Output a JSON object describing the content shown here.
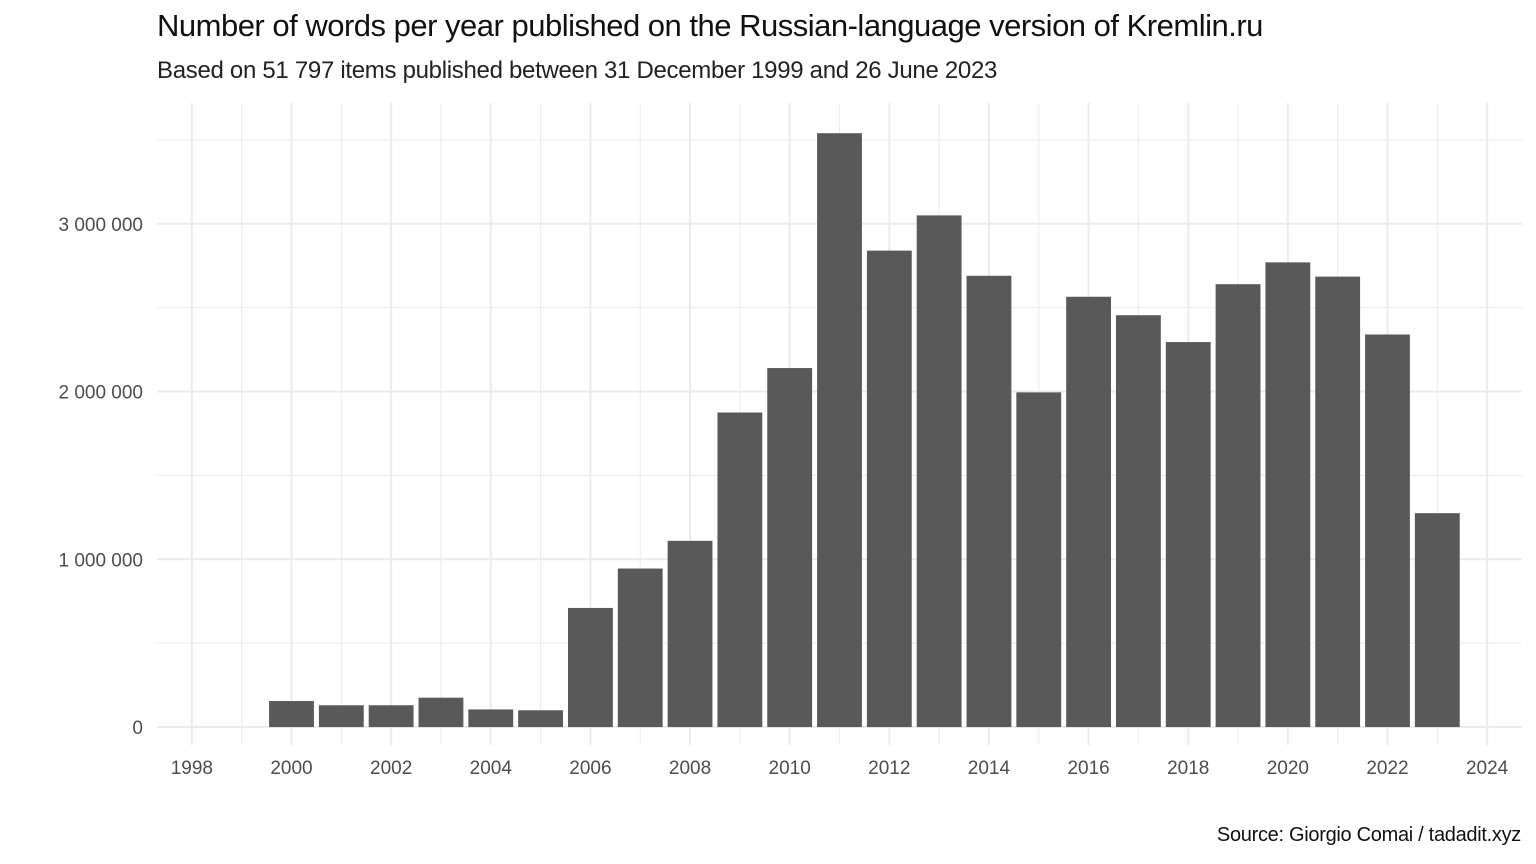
{
  "chart_data": {
    "type": "bar",
    "title": "Number of words per year published on the Russian-language version of Kremlin.ru",
    "subtitle": "Based on 51 797 items published between 31 December 1999 and 26 June 2023",
    "caption": "Source: Giorgio Comai / tadadit.xyz",
    "xlabel": "",
    "ylabel": "",
    "categories": [
      "2000",
      "2001",
      "2002",
      "2003",
      "2004",
      "2005",
      "2006",
      "2007",
      "2008",
      "2009",
      "2010",
      "2011",
      "2012",
      "2013",
      "2014",
      "2015",
      "2016",
      "2017",
      "2018",
      "2019",
      "2020",
      "2021",
      "2022",
      "2023"
    ],
    "values": [
      155000,
      130000,
      130000,
      175000,
      105000,
      100000,
      710000,
      945000,
      1110000,
      1875000,
      2140000,
      3540000,
      2840000,
      3050000,
      2690000,
      1995000,
      2565000,
      2455000,
      2295000,
      2640000,
      2770000,
      2685000,
      2340000,
      1275000
    ],
    "xlim": [
      1997.3,
      2024.7
    ],
    "ylim": [
      -107000,
      3720000
    ],
    "x_ticks": [
      1998,
      2000,
      2002,
      2004,
      2006,
      2008,
      2010,
      2012,
      2014,
      2016,
      2018,
      2020,
      2022,
      2024
    ],
    "x_tick_labels": [
      "1998",
      "2000",
      "2002",
      "2004",
      "2006",
      "2008",
      "2010",
      "2012",
      "2014",
      "2016",
      "2018",
      "2020",
      "2022",
      "2024"
    ],
    "y_ticks": [
      0,
      1000000,
      2000000,
      3000000
    ],
    "y_tick_labels": [
      "0",
      "1 000 000",
      "2 000 000",
      "3 000 000"
    ],
    "grid": true,
    "legend": "none",
    "bar_color": "#595959",
    "grid_color": "#ebebeb"
  }
}
